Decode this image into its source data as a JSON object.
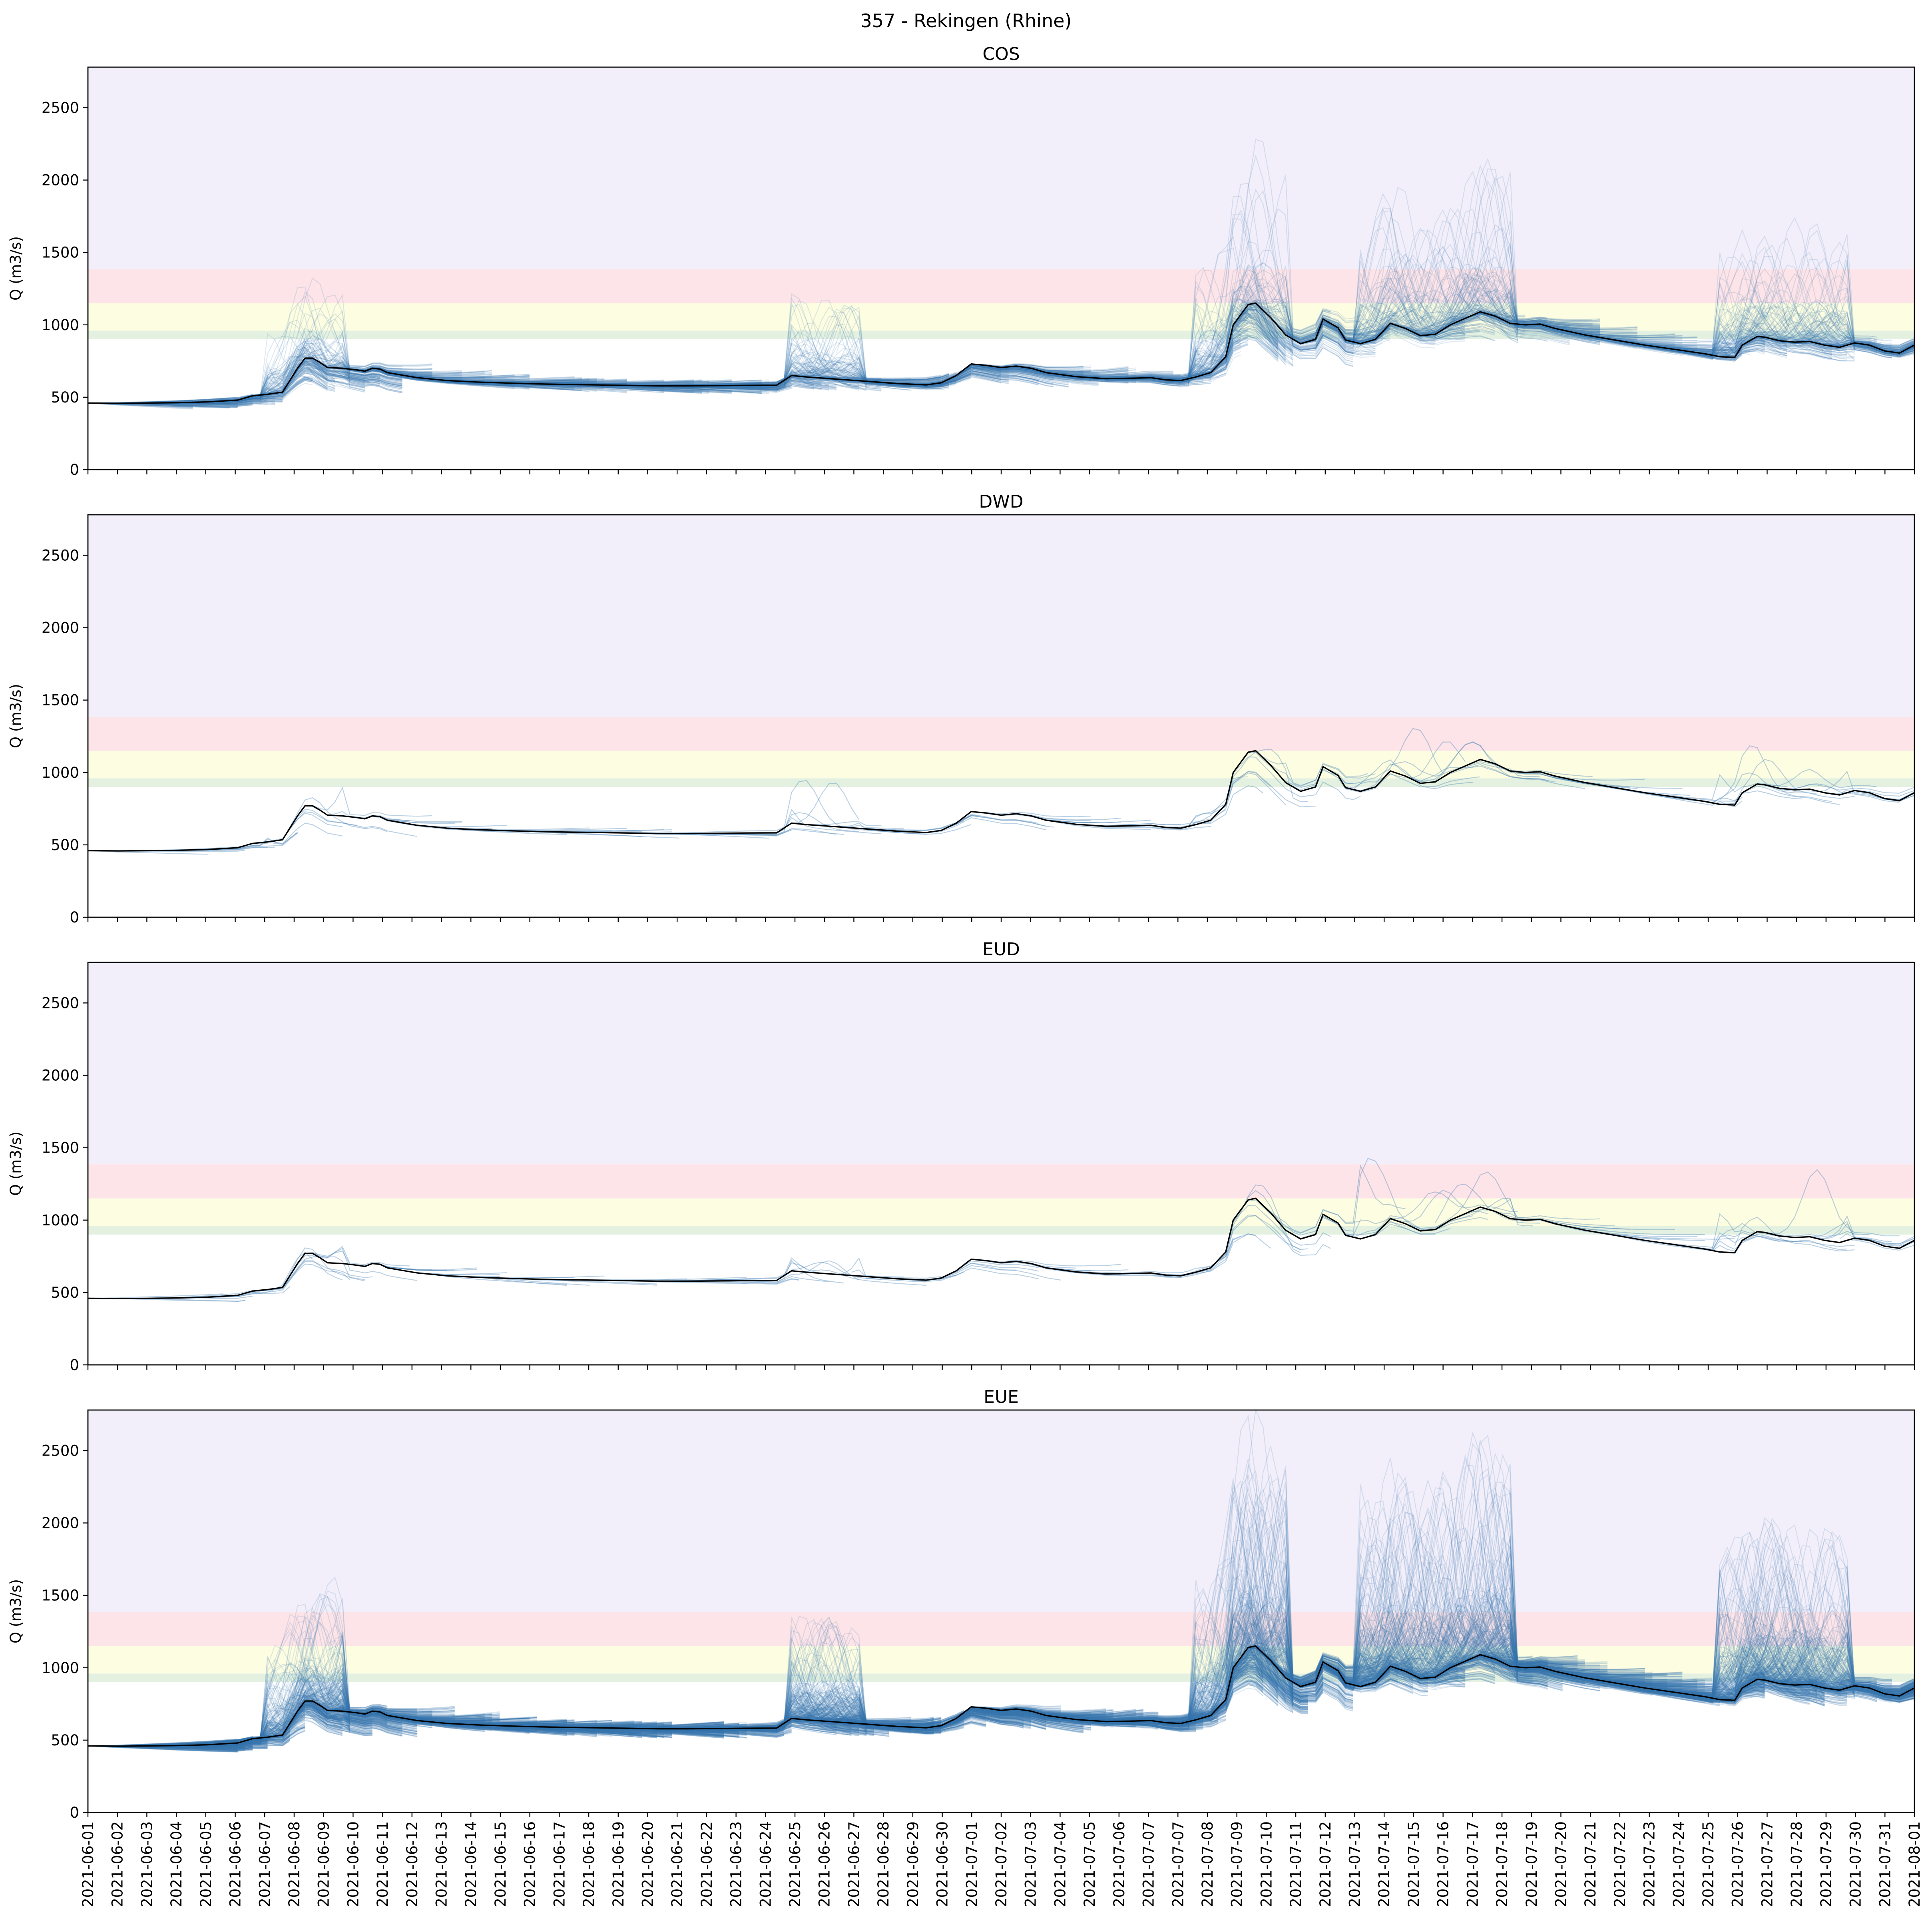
{
  "figure": {
    "title": "357 - Rekingen (Rhine)"
  },
  "chart_data": {
    "type": "line",
    "shared_x": {
      "type": "date",
      "range": [
        "2021-06-01",
        "2021-08-01"
      ],
      "tick_labels": [
        "2021-06-01",
        "2021-06-02",
        "2021-06-03",
        "2021-06-04",
        "2021-06-05",
        "2021-06-06",
        "2021-06-07",
        "2021-06-08",
        "2021-06-09",
        "2021-06-10",
        "2021-06-11",
        "2021-06-12",
        "2021-06-13",
        "2021-06-14",
        "2021-06-15",
        "2021-06-16",
        "2021-06-17",
        "2021-06-18",
        "2021-06-19",
        "2021-06-20",
        "2021-06-21",
        "2021-06-22",
        "2021-06-23",
        "2021-06-24",
        "2021-06-25",
        "2021-06-26",
        "2021-06-27",
        "2021-06-28",
        "2021-06-29",
        "2021-06-30",
        "2021-07-01",
        "2021-07-02",
        "2021-07-03",
        "2021-07-04",
        "2021-07-05",
        "2021-07-06",
        "2021-07-07",
        "2021-07-07",
        "2021-07-08",
        "2021-07-09",
        "2021-07-10",
        "2021-07-11",
        "2021-07-12",
        "2021-07-13",
        "2021-07-14",
        "2021-07-15",
        "2021-07-16",
        "2021-07-17",
        "2021-07-18",
        "2021-07-19",
        "2021-07-20",
        "2021-07-21",
        "2021-07-22",
        "2021-07-23",
        "2021-07-24",
        "2021-07-25",
        "2021-07-26",
        "2021-07-27",
        "2021-07-28",
        "2021-07-29",
        "2021-07-30",
        "2021-07-31",
        "2021-08-01"
      ]
    },
    "ylabel": "Q (m3/s)",
    "ylim": [
      0,
      2780
    ],
    "yticks": [
      0,
      500,
      1000,
      1500,
      2000,
      2500
    ],
    "bands": [
      {
        "from": 900,
        "to": 960,
        "color": "#e4f1e1"
      },
      {
        "from": 960,
        "to": 1150,
        "color": "#fdfde2"
      },
      {
        "from": 1150,
        "to": 1385,
        "color": "#fde4e8"
      },
      {
        "from": 1385,
        "to": 2780,
        "color": "#f2effa"
      }
    ],
    "observed": {
      "color": "#000000",
      "points": [
        [
          "2021-06-01",
          460
        ],
        [
          "2021-06-02",
          458
        ],
        [
          "2021-06-03",
          460
        ],
        [
          "2021-06-04",
          462
        ],
        [
          "2021-06-05",
          468
        ],
        [
          "2021-06-06",
          480
        ],
        [
          "2021-06-06T12",
          510
        ],
        [
          "2021-06-07",
          520
        ],
        [
          "2021-06-07T12",
          535
        ],
        [
          "2021-06-08",
          700
        ],
        [
          "2021-06-08T06",
          770
        ],
        [
          "2021-06-08T12",
          770
        ],
        [
          "2021-06-08T18",
          740
        ],
        [
          "2021-06-09",
          705
        ],
        [
          "2021-06-09T12",
          700
        ],
        [
          "2021-06-10",
          688
        ],
        [
          "2021-06-10T06",
          680
        ],
        [
          "2021-06-10T12",
          700
        ],
        [
          "2021-06-10T18",
          695
        ],
        [
          "2021-06-11",
          670
        ],
        [
          "2021-06-12",
          635
        ],
        [
          "2021-06-13",
          615
        ],
        [
          "2021-06-14",
          605
        ],
        [
          "2021-06-15",
          598
        ],
        [
          "2021-06-16",
          592
        ],
        [
          "2021-06-17",
          588
        ],
        [
          "2021-06-18",
          585
        ],
        [
          "2021-06-19",
          582
        ],
        [
          "2021-06-20",
          578
        ],
        [
          "2021-06-21",
          578
        ],
        [
          "2021-06-22",
          580
        ],
        [
          "2021-06-23",
          582
        ],
        [
          "2021-06-24",
          583
        ],
        [
          "2021-06-24T12",
          650
        ],
        [
          "2021-06-25",
          640
        ],
        [
          "2021-06-26",
          625
        ],
        [
          "2021-06-27",
          610
        ],
        [
          "2021-06-28",
          595
        ],
        [
          "2021-06-29",
          585
        ],
        [
          "2021-06-29T12",
          600
        ],
        [
          "2021-06-30",
          650
        ],
        [
          "2021-06-30T12",
          730
        ],
        [
          "2021-07-01",
          720
        ],
        [
          "2021-07-01T12",
          705
        ],
        [
          "2021-07-02",
          715
        ],
        [
          "2021-07-02T12",
          700
        ],
        [
          "2021-07-03",
          670
        ],
        [
          "2021-07-04",
          642
        ],
        [
          "2021-07-05",
          628
        ],
        [
          "2021-07-06",
          632
        ],
        [
          "2021-07-06T12",
          635
        ],
        [
          "2021-07-07",
          620
        ],
        [
          "2021-07-07T12",
          615
        ],
        [
          "2021-07-08",
          640
        ],
        [
          "2021-07-08T12",
          670
        ],
        [
          "2021-07-09",
          780
        ],
        [
          "2021-07-09T06",
          1000
        ],
        [
          "2021-07-09T18",
          1140
        ],
        [
          "2021-07-10",
          1150
        ],
        [
          "2021-07-10T12",
          1050
        ],
        [
          "2021-07-11",
          930
        ],
        [
          "2021-07-11T12",
          870
        ],
        [
          "2021-07-12",
          900
        ],
        [
          "2021-07-12T06",
          1040
        ],
        [
          "2021-07-12T18",
          980
        ],
        [
          "2021-07-13",
          895
        ],
        [
          "2021-07-13T12",
          870
        ],
        [
          "2021-07-14",
          900
        ],
        [
          "2021-07-14T12",
          1010
        ],
        [
          "2021-07-15",
          975
        ],
        [
          "2021-07-15T12",
          925
        ],
        [
          "2021-07-16",
          935
        ],
        [
          "2021-07-16T12",
          1000
        ],
        [
          "2021-07-17",
          1045
        ],
        [
          "2021-07-17T12",
          1090
        ],
        [
          "2021-07-18",
          1060
        ],
        [
          "2021-07-18T12",
          1010
        ],
        [
          "2021-07-19",
          1000
        ],
        [
          "2021-07-19T12",
          1005
        ],
        [
          "2021-07-20",
          975
        ],
        [
          "2021-07-21",
          930
        ],
        [
          "2021-07-22",
          895
        ],
        [
          "2021-07-23",
          860
        ],
        [
          "2021-07-24",
          830
        ],
        [
          "2021-07-25",
          800
        ],
        [
          "2021-07-25T12",
          780
        ],
        [
          "2021-07-26",
          775
        ],
        [
          "2021-07-26T06",
          860
        ],
        [
          "2021-07-26T18",
          920
        ],
        [
          "2021-07-27",
          915
        ],
        [
          "2021-07-27T12",
          890
        ],
        [
          "2021-07-28",
          880
        ],
        [
          "2021-07-28T12",
          885
        ],
        [
          "2021-07-29",
          860
        ],
        [
          "2021-07-29T12",
          845
        ],
        [
          "2021-07-30",
          875
        ],
        [
          "2021-07-30T12",
          860
        ],
        [
          "2021-07-31",
          820
        ],
        [
          "2021-07-31T12",
          805
        ],
        [
          "2021-08-01",
          860
        ]
      ]
    },
    "panels": [
      {
        "title": "COS",
        "members_per_run": 21,
        "spread": 0.17,
        "spike_scale": 1.0
      },
      {
        "title": "DWD",
        "members_per_run": 1,
        "spread": 0.12,
        "spike_scale": 0.6
      },
      {
        "title": "EUD",
        "members_per_run": 1,
        "spread": 0.14,
        "spike_scale": 0.7
      },
      {
        "title": "EUE",
        "members_per_run": 51,
        "spread": 0.2,
        "spike_scale": 1.35
      }
    ],
    "ensemble_color": "#3a78b0"
  }
}
